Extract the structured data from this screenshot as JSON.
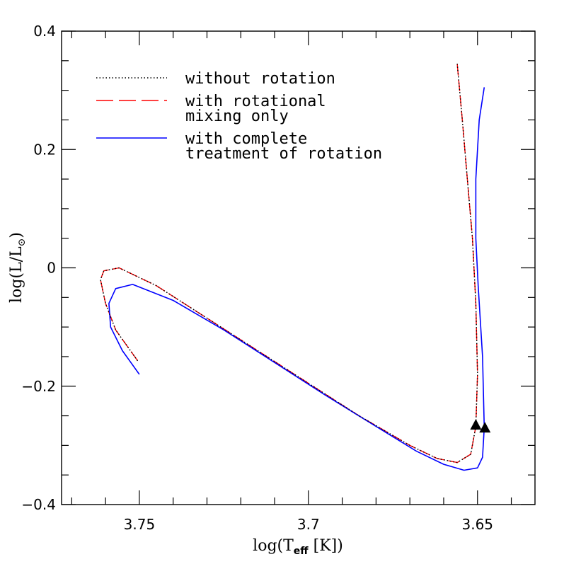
{
  "chart_data": {
    "type": "line",
    "xlabel": {
      "pre": "log(T",
      "sub": "eff",
      "post": " [K])"
    },
    "ylabel": {
      "pre": "log(L/L",
      "sub": "⊙",
      "post": ")"
    },
    "xlim": [
      3.773,
      3.633
    ],
    "ylim": [
      -0.4,
      0.4
    ],
    "x_reversed": true,
    "x_major_ticks": [
      3.75,
      3.7,
      3.65
    ],
    "x_tick_labels": [
      "3.75",
      "3.7",
      "3.65"
    ],
    "x_minor_step": 0.01,
    "y_major_ticks": [
      -0.4,
      -0.2,
      0.0,
      0.2,
      0.4
    ],
    "y_tick_labels": [
      "−0.4",
      "−0.2",
      "0",
      "0.2",
      "0.4"
    ],
    "y_minor_step": 0.05,
    "grid": false,
    "legend_placement": "top-left",
    "series": [
      {
        "name": "without rotation",
        "color": "#000000",
        "style": "dotted",
        "x": [
          3.7505,
          3.757,
          3.76,
          3.7615,
          3.7605,
          3.756,
          3.745,
          3.73,
          3.715,
          3.7,
          3.685,
          3.67,
          3.662,
          3.656,
          3.652,
          3.6505,
          3.65,
          3.6505,
          3.6515,
          3.653,
          3.6545,
          3.656
        ],
        "y": [
          -0.157,
          -0.105,
          -0.06,
          -0.02,
          -0.005,
          0.0,
          -0.03,
          -0.085,
          -0.14,
          -0.195,
          -0.25,
          -0.3,
          -0.322,
          -0.329,
          -0.315,
          -0.268,
          -0.18,
          -0.06,
          0.05,
          0.15,
          0.25,
          0.345
        ]
      },
      {
        "name": "with rotational mixing only",
        "color": "#ff0000",
        "style": "dashed",
        "x": [
          3.7505,
          3.757,
          3.76,
          3.7615,
          3.7605,
          3.756,
          3.745,
          3.73,
          3.715,
          3.7,
          3.685,
          3.67,
          3.662,
          3.656,
          3.652,
          3.6505,
          3.65,
          3.6505,
          3.6515,
          3.653,
          3.6545,
          3.656
        ],
        "y": [
          -0.157,
          -0.105,
          -0.06,
          -0.02,
          -0.005,
          0.0,
          -0.03,
          -0.085,
          -0.14,
          -0.195,
          -0.25,
          -0.3,
          -0.322,
          -0.329,
          -0.315,
          -0.268,
          -0.18,
          -0.06,
          0.05,
          0.15,
          0.25,
          0.345
        ]
      },
      {
        "name": "with complete treatment of rotation",
        "color": "#0000ff",
        "style": "solid",
        "x": [
          3.75,
          3.755,
          3.7585,
          3.759,
          3.757,
          3.752,
          3.74,
          3.725,
          3.71,
          3.695,
          3.68,
          3.668,
          3.66,
          3.654,
          3.65,
          3.6485,
          3.648,
          3.6485,
          3.6498,
          3.6505,
          3.6505,
          3.6495,
          3.648
        ],
        "y": [
          -0.18,
          -0.14,
          -0.1,
          -0.06,
          -0.035,
          -0.028,
          -0.055,
          -0.105,
          -0.16,
          -0.215,
          -0.268,
          -0.31,
          -0.332,
          -0.342,
          -0.338,
          -0.32,
          -0.27,
          -0.15,
          -0.03,
          0.05,
          0.15,
          0.25,
          0.305
        ]
      }
    ],
    "markers": [
      {
        "x": 3.6505,
        "y": -0.265,
        "shape": "triangle",
        "color": "#000000"
      },
      {
        "x": 3.6478,
        "y": -0.27,
        "shape": "triangle",
        "color": "#000000"
      }
    ],
    "legend": [
      {
        "lines": [
          "without rotation"
        ],
        "style": "dotted",
        "color": "#000000"
      },
      {
        "lines": [
          "with rotational",
          "mixing only"
        ],
        "style": "dashed",
        "color": "#ff0000"
      },
      {
        "lines": [
          "with complete",
          "treatment of rotation"
        ],
        "style": "solid",
        "color": "#0000ff"
      }
    ]
  }
}
